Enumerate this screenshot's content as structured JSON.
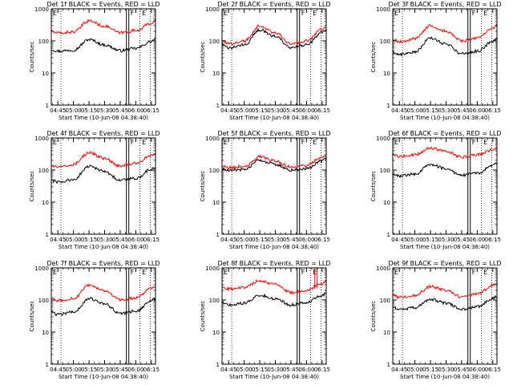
{
  "figure": {
    "xlabel": "Start Time (10-Jun-08 04:38:40)",
    "ylabel": "Counts/sec",
    "xticks": [
      "04:45",
      "05:00",
      "05:15",
      "05:30",
      "05:45",
      "06:00",
      "06:15"
    ],
    "yticks": [
      "1",
      "10",
      "100",
      "1000"
    ],
    "colors": {
      "events": "#000000",
      "lld": "#ff0000",
      "axes": "#000000",
      "background": "#ffffff"
    }
  },
  "chart_data": [
    {
      "type": "line",
      "title": "Det 1f BLACK = Events, RED = LLD",
      "xlim": [
        "04:38:40",
        "06:19:00"
      ],
      "ylim": [
        1,
        1000
      ],
      "yscale": "log",
      "markers": [
        "E",
        "F",
        "E"
      ],
      "series": [
        {
          "name": "Events",
          "color": "#000000",
          "x": [
            "04:38",
            "04:45",
            "05:00",
            "05:15",
            "05:30",
            "05:45",
            "06:00",
            "06:15",
            "06:18"
          ],
          "values": [
            55,
            48,
            52,
            110,
            75,
            50,
            58,
            95,
            115
          ]
        },
        {
          "name": "LLD",
          "color": "#ff0000",
          "x": [
            "04:38",
            "04:45",
            "05:00",
            "05:15",
            "05:30",
            "05:45",
            "06:00",
            "06:15",
            "06:18"
          ],
          "values": [
            200,
            175,
            190,
            420,
            290,
            180,
            210,
            350,
            420
          ]
        }
      ]
    },
    {
      "type": "line",
      "title": "Det 2f BLACK = Events, RED = LLD",
      "xlim": [
        "04:38:40",
        "06:19:00"
      ],
      "ylim": [
        1,
        1000
      ],
      "yscale": "log",
      "markers": [
        "E",
        "F",
        "E"
      ],
      "series": [
        {
          "name": "Events",
          "color": "#000000",
          "x": [
            "04:38",
            "04:45",
            "05:00",
            "05:15",
            "05:30",
            "05:45",
            "06:00",
            "06:15",
            "06:18"
          ],
          "values": [
            75,
            60,
            75,
            220,
            140,
            60,
            75,
            180,
            220
          ]
        },
        {
          "name": "LLD",
          "color": "#ff0000",
          "x": [
            "04:38",
            "04:45",
            "05:00",
            "05:15",
            "05:30",
            "05:45",
            "06:00",
            "06:15",
            "06:18"
          ],
          "values": [
            100,
            80,
            100,
            290,
            180,
            80,
            100,
            230,
            270
          ]
        }
      ]
    },
    {
      "type": "line",
      "title": "Det 3f BLACK = Events, RED = LLD",
      "xlim": [
        "04:38:40",
        "06:19:00"
      ],
      "ylim": [
        1,
        1000
      ],
      "yscale": "log",
      "markers": [
        "E",
        "F",
        "E"
      ],
      "series": [
        {
          "name": "Events",
          "color": "#000000",
          "x": [
            "04:38",
            "04:45",
            "05:00",
            "05:15",
            "05:30",
            "05:45",
            "06:00",
            "06:15",
            "06:18"
          ],
          "values": [
            45,
            38,
            45,
            120,
            80,
            40,
            48,
            95,
            115
          ]
        },
        {
          "name": "LLD",
          "color": "#ff0000",
          "x": [
            "04:38",
            "04:45",
            "05:00",
            "05:15",
            "05:30",
            "05:45",
            "06:00",
            "06:15",
            "06:18"
          ],
          "values": [
            110,
            95,
            115,
            300,
            200,
            100,
            120,
            240,
            290
          ]
        }
      ]
    },
    {
      "type": "line",
      "title": "Det 4f BLACK = Events, RED = LLD",
      "xlim": [
        "04:38:40",
        "06:19:00"
      ],
      "ylim": [
        1,
        1000
      ],
      "yscale": "log",
      "markers": [
        "E",
        "F",
        "E"
      ],
      "series": [
        {
          "name": "Events",
          "color": "#000000",
          "x": [
            "04:38",
            "04:45",
            "05:00",
            "05:15",
            "05:30",
            "05:45",
            "06:00",
            "06:15",
            "06:18"
          ],
          "values": [
            50,
            42,
            50,
            130,
            90,
            48,
            55,
            105,
            120
          ]
        },
        {
          "name": "LLD",
          "color": "#ff0000",
          "x": [
            "04:38",
            "04:45",
            "05:00",
            "05:15",
            "05:30",
            "05:45",
            "06:00",
            "06:15",
            "06:18"
          ],
          "values": [
            140,
            120,
            150,
            350,
            230,
            130,
            160,
            290,
            320
          ]
        }
      ]
    },
    {
      "type": "line",
      "title": "Det 5f BLACK = Events, RED = LLD",
      "xlim": [
        "04:38:40",
        "06:19:00"
      ],
      "ylim": [
        1,
        1000
      ],
      "yscale": "log",
      "markers": [
        "E",
        "F",
        "E"
      ],
      "series": [
        {
          "name": "Events",
          "color": "#000000",
          "x": [
            "04:38",
            "04:45",
            "05:00",
            "05:15",
            "05:30",
            "05:45",
            "06:00",
            "06:15",
            "06:18"
          ],
          "values": [
            110,
            95,
            105,
            200,
            150,
            100,
            110,
            190,
            215
          ]
        },
        {
          "name": "LLD",
          "color": "#ff0000",
          "x": [
            "04:38",
            "04:45",
            "05:00",
            "05:15",
            "05:30",
            "05:45",
            "06:00",
            "06:15",
            "06:18"
          ],
          "values": [
            140,
            120,
            130,
            260,
            190,
            125,
            140,
            250,
            290
          ]
        }
      ]
    },
    {
      "type": "line",
      "title": "Det 6f BLACK = Events, RED = LLD",
      "xlim": [
        "04:38:40",
        "06:19:00"
      ],
      "ylim": [
        1,
        1000
      ],
      "yscale": "log",
      "markers": [
        "E",
        "F",
        "E"
      ],
      "series": [
        {
          "name": "Events",
          "color": "#000000",
          "x": [
            "04:38",
            "04:45",
            "05:00",
            "05:15",
            "05:30",
            "05:45",
            "06:00",
            "06:15",
            "06:18"
          ],
          "values": [
            80,
            65,
            75,
            150,
            110,
            68,
            80,
            135,
            155
          ]
        },
        {
          "name": "LLD",
          "color": "#ff0000",
          "x": [
            "04:38",
            "04:45",
            "05:00",
            "05:15",
            "05:30",
            "05:45",
            "06:00",
            "06:15",
            "06:18"
          ],
          "values": [
            300,
            260,
            300,
            480,
            380,
            250,
            300,
            430,
            470
          ]
        }
      ]
    },
    {
      "type": "line",
      "title": "Det 7f BLACK = Events, RED = LLD",
      "xlim": [
        "04:38:40",
        "06:19:00"
      ],
      "ylim": [
        1,
        1000
      ],
      "yscale": "log",
      "markers": [
        "E",
        "F",
        "E"
      ],
      "series": [
        {
          "name": "Events",
          "color": "#000000",
          "x": [
            "04:38",
            "04:45",
            "05:00",
            "05:15",
            "05:30",
            "05:45",
            "06:00",
            "06:15",
            "06:18"
          ],
          "values": [
            42,
            35,
            42,
            110,
            75,
            38,
            45,
            90,
            110
          ]
        },
        {
          "name": "LLD",
          "color": "#ff0000",
          "x": [
            "04:38",
            "04:45",
            "05:00",
            "05:15",
            "05:30",
            "05:45",
            "06:00",
            "06:15",
            "06:18"
          ],
          "values": [
            110,
            95,
            110,
            280,
            190,
            100,
            115,
            230,
            270
          ]
        }
      ]
    },
    {
      "type": "line",
      "title": "Det 8f BLACK = Events, RED = LLD",
      "xlim": [
        "04:38:40",
        "06:19:00"
      ],
      "ylim": [
        1,
        1000
      ],
      "yscale": "log",
      "markers": [
        "E",
        "F",
        "E"
      ],
      "series": [
        {
          "name": "Events",
          "color": "#000000",
          "x": [
            "04:38",
            "04:45",
            "05:00",
            "05:15",
            "05:30",
            "05:45",
            "06:00",
            "06:15",
            "06:18"
          ],
          "values": [
            85,
            70,
            80,
            140,
            110,
            70,
            85,
            135,
            160
          ]
        },
        {
          "name": "LLD",
          "color": "#ff0000",
          "x": [
            "04:38",
            "04:45",
            "05:00",
            "05:15",
            "05:30",
            "05:45",
            "06:00",
            "06:15",
            "06:18"
          ],
          "values": [
            260,
            220,
            250,
            400,
            310,
            170,
            200,
            320,
            380
          ]
        }
      ]
    },
    {
      "type": "line",
      "title": "Det 9f BLACK = Events, RED = LLD",
      "xlim": [
        "04:38:40",
        "06:19:00"
      ],
      "ylim": [
        1,
        1000
      ],
      "yscale": "log",
      "markers": [
        "E",
        "F",
        "E"
      ],
      "series": [
        {
          "name": "Events",
          "color": "#000000",
          "x": [
            "04:38",
            "04:45",
            "05:00",
            "05:15",
            "05:30",
            "05:45",
            "06:00",
            "06:15",
            "06:18"
          ],
          "values": [
            60,
            50,
            58,
            105,
            80,
            52,
            62,
            110,
            130
          ]
        },
        {
          "name": "LLD",
          "color": "#ff0000",
          "x": [
            "04:38",
            "04:45",
            "05:00",
            "05:15",
            "05:30",
            "05:45",
            "06:00",
            "06:15",
            "06:18"
          ],
          "values": [
            150,
            120,
            140,
            260,
            200,
            125,
            150,
            280,
            330
          ]
        }
      ]
    }
  ]
}
